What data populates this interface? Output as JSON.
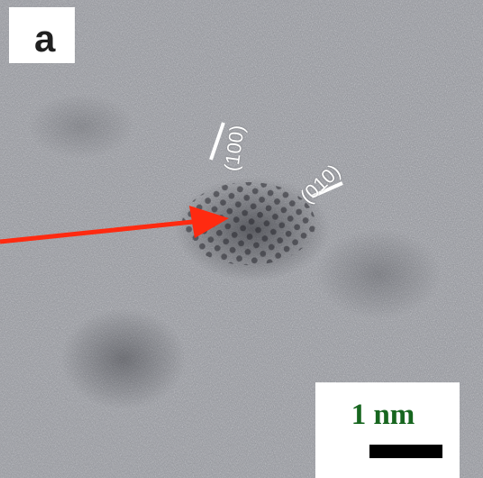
{
  "figure": {
    "panel_label": "a",
    "scale_bar_text": "1 nm",
    "plane_labels": {
      "plane_100": "(100)",
      "plane_010": "(010)"
    },
    "colors": {
      "background_gray": "#8f9298",
      "arrow_red": "#ff2a10",
      "scale_label_green": "#17661f",
      "scale_bar_black": "#000000",
      "annotation_white": "#ffffff"
    },
    "icons": {
      "arrow": "red-arrow-icon"
    }
  }
}
